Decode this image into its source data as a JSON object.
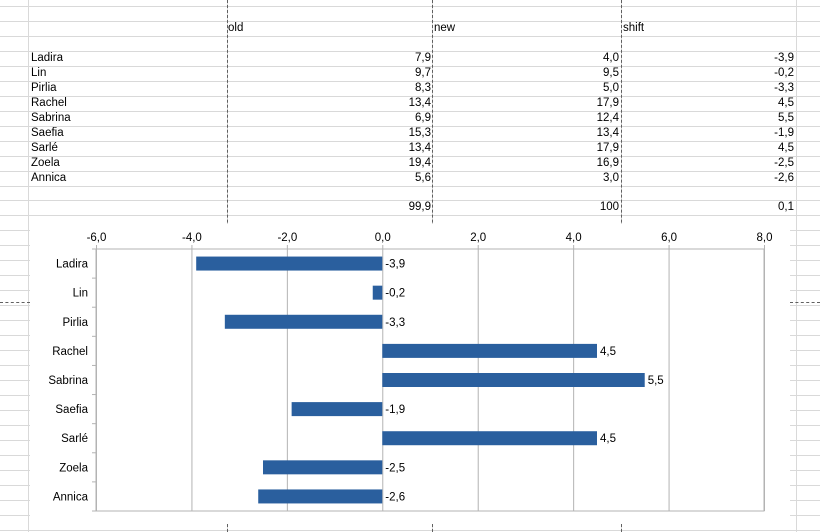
{
  "table": {
    "headers": [
      "old",
      "new",
      "shift"
    ],
    "rows": [
      {
        "name": "Ladira",
        "old": "7,9",
        "new": "4,0",
        "shift": "-3,9"
      },
      {
        "name": "Lin",
        "old": "9,7",
        "new": "9,5",
        "shift": "-0,2"
      },
      {
        "name": "Pirlia",
        "old": "8,3",
        "new": "5,0",
        "shift": "-3,3"
      },
      {
        "name": "Rachel",
        "old": "13,4",
        "new": "17,9",
        "shift": "4,5"
      },
      {
        "name": "Sabrina",
        "old": "6,9",
        "new": "12,4",
        "shift": "5,5"
      },
      {
        "name": "Saefia",
        "old": "15,3",
        "new": "13,4",
        "shift": "-1,9"
      },
      {
        "name": "Sarlé",
        "old": "13,4",
        "new": "17,9",
        "shift": "4,5"
      },
      {
        "name": "Zoela",
        "old": "19,4",
        "new": "16,9",
        "shift": "-2,5"
      },
      {
        "name": "Annica",
        "old": "5,6",
        "new": "3,0",
        "shift": "-2,6"
      }
    ],
    "totals": {
      "old": "99,9",
      "new": "100",
      "shift": "0,1"
    }
  },
  "chart_data": {
    "type": "bar",
    "orientation": "horizontal",
    "categories": [
      "Ladira",
      "Lin",
      "Pirlia",
      "Rachel",
      "Sabrina",
      "Saefia",
      "Sarlé",
      "Zoela",
      "Annica"
    ],
    "values": [
      -3.9,
      -0.2,
      -3.3,
      4.5,
      5.5,
      -1.9,
      4.5,
      -2.5,
      -2.6
    ],
    "data_labels": [
      "-3,9",
      "-0,2",
      "-3,3",
      "4,5",
      "5,5",
      "-1,9",
      "4,5",
      "-2,5",
      "-2,6"
    ],
    "xlim": [
      -6,
      8
    ],
    "xticks": [
      -6,
      -4,
      -2,
      0,
      2,
      4,
      6,
      8
    ],
    "xtick_labels": [
      "-6,0",
      "-4,0",
      "-2,0",
      "0,0",
      "2,0",
      "4,0",
      "6,0",
      "8,0"
    ],
    "x_axis_position": "top",
    "grid": true,
    "legend": "none",
    "bar_color": "#2a5f9e",
    "title": "",
    "xlabel": "",
    "ylabel": ""
  }
}
